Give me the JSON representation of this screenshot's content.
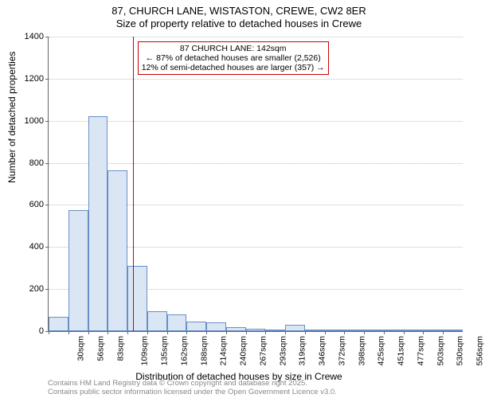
{
  "title_line1": "87, CHURCH LANE, WISTASTON, CREWE, CW2 8ER",
  "title_line2": "Size of property relative to detached houses in Crewe",
  "ylabel": "Number of detached properties",
  "xlabel": "Distribution of detached houses by size in Crewe",
  "footer_line1": "Contains HM Land Registry data © Crown copyright and database right 2025.",
  "footer_line2": "Contains public sector information licensed under the Open Government Licence v3.0.",
  "annotation": {
    "line1": "87 CHURCH LANE: 142sqm",
    "line2": "← 87% of detached houses are smaller (2,526)",
    "line3": "12% of semi-detached houses are larger (357) →"
  },
  "chart": {
    "type": "histogram",
    "ylim": [
      0,
      1400
    ],
    "ytick_step": 200,
    "yticks": [
      0,
      200,
      400,
      600,
      800,
      1000,
      1200,
      1400
    ],
    "xticks": [
      "30sqm",
      "56sqm",
      "83sqm",
      "109sqm",
      "135sqm",
      "162sqm",
      "188sqm",
      "214sqm",
      "240sqm",
      "267sqm",
      "293sqm",
      "319sqm",
      "346sqm",
      "372sqm",
      "398sqm",
      "425sqm",
      "451sqm",
      "477sqm",
      "503sqm",
      "530sqm",
      "556sqm"
    ],
    "bar_values": [
      70,
      575,
      1020,
      765,
      310,
      95,
      80,
      45,
      40,
      20,
      12,
      8,
      30,
      4,
      4,
      3,
      2,
      2,
      2,
      1,
      0
    ],
    "bar_color": "#dbe6f5",
    "bar_border": "#6a8fc5",
    "marker_color": "#cc0000",
    "marker_x_bin_index": 4.27,
    "background_color": "#ffffff",
    "grid_color": "#c0c0c0",
    "axis_color": "#666666",
    "title_fontsize": 13,
    "label_fontsize": 12,
    "tick_fontsize": 11,
    "annotation_fontsize": 10.5
  }
}
